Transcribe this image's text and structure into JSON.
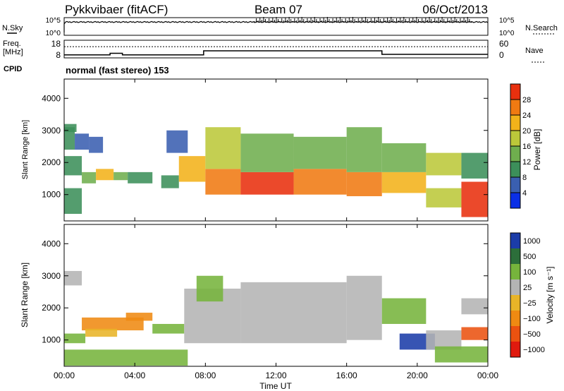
{
  "header": {
    "station": "Pykkvibaer (fitACF)",
    "beam": "Beam 07",
    "date": "06/Oct/2013"
  },
  "top_strip": {
    "nsky_label": "N.Sky",
    "nsky_ticks": [
      "10^5",
      "10^0"
    ],
    "nsearch_label": "N.Search",
    "nsearch_ticks": [
      "10^5",
      "10^0"
    ],
    "freq_label_1": "Freq.",
    "freq_label_2": "[MHz]",
    "freq_ticks": [
      "18",
      "8"
    ],
    "nave_label": "Nave",
    "nave_ticks": [
      "60",
      "0"
    ],
    "cpid_label": "CPID",
    "cpid_value": "normal (fast stereo) 153",
    "freq_steps": [
      {
        "start_hour": 0,
        "end_hour": 2.6,
        "freq_mhz": 9.7
      },
      {
        "start_hour": 2.6,
        "end_hour": 3.3,
        "freq_mhz": 10.6
      },
      {
        "start_hour": 3.3,
        "end_hour": 7.9,
        "freq_mhz": 9.7
      },
      {
        "start_hour": 7.9,
        "end_hour": 18.0,
        "freq_mhz": 12.0
      },
      {
        "start_hour": 18.0,
        "end_hour": 24,
        "freq_mhz": 10.0
      }
    ],
    "nave_level": 38
  },
  "panels": {
    "power": {
      "ylabel": "Slant Range [km]",
      "cb_label": "Power [dB]",
      "cb_ticks": [
        "28",
        "24",
        "20",
        "16",
        "12",
        "8",
        "4"
      ]
    },
    "velocity": {
      "ylabel": "Slant Range [km]",
      "cb_label": "Velocity [m s⁻¹]",
      "cb_ticks": [
        "1000",
        "500",
        "100",
        "25",
        "−25",
        "−100",
        "−500",
        "−1000"
      ]
    }
  },
  "x_axis": {
    "label": "Time UT",
    "ticks": [
      "00:00",
      "04:00",
      "08:00",
      "12:00",
      "16:00",
      "20:00",
      "00:00"
    ]
  },
  "y_ticks": [
    "4000",
    "3000",
    "2000",
    "1000"
  ],
  "colors": {
    "power_scale": [
      "#0a2fe6",
      "#3a5fb0",
      "#3c8f5a",
      "#6fae4e",
      "#bcc83a",
      "#f2b21a",
      "#f07a12",
      "#e8300e"
    ],
    "velocity_scale": [
      "#1b3ca8",
      "#2c6e3a",
      "#76b43c",
      "#b4b4b4",
      "#e8b428",
      "#ef8a12",
      "#eb5210",
      "#e01a0e"
    ]
  },
  "chart_data": {
    "type": "heatmap",
    "title": "Pykkvibaer (fitACF)   Beam 07   06/Oct/2013",
    "xlabel": "Time UT",
    "ylabel": "Slant Range [km]",
    "xlim_hours": [
      0,
      24
    ],
    "ylim_km": [
      180,
      4600
    ],
    "panels": [
      {
        "name": "Power [dB]",
        "colorbar_range": [
          0,
          30
        ],
        "regions": [
          {
            "start_hour": 0.0,
            "end_hour": 0.6,
            "range_km": [
              2400,
              3100
            ],
            "value": 8
          },
          {
            "start_hour": 0.6,
            "end_hour": 1.4,
            "range_km": [
              2400,
              2900
            ],
            "value": 6
          },
          {
            "start_hour": 1.4,
            "end_hour": 2.2,
            "range_km": [
              2300,
              2800
            ],
            "value": 6
          },
          {
            "start_hour": 0.0,
            "end_hour": 1.0,
            "range_km": [
              1600,
              2200
            ],
            "value": 10
          },
          {
            "start_hour": 0.0,
            "end_hour": 1.0,
            "range_km": [
              400,
              1200
            ],
            "value": 9
          },
          {
            "start_hour": 0.0,
            "end_hour": 0.7,
            "range_km": [
              2950,
              3200
            ],
            "value": 11
          },
          {
            "start_hour": 1.0,
            "end_hour": 1.8,
            "range_km": [
              1350,
              1700
            ],
            "value": 14
          },
          {
            "start_hour": 1.8,
            "end_hour": 2.8,
            "range_km": [
              1450,
              1800
            ],
            "value": 19
          },
          {
            "start_hour": 2.8,
            "end_hour": 3.6,
            "range_km": [
              1450,
              1700
            ],
            "value": 14
          },
          {
            "start_hour": 3.6,
            "end_hour": 5.0,
            "range_km": [
              1350,
              1700
            ],
            "value": 9
          },
          {
            "start_hour": 5.5,
            "end_hour": 6.5,
            "range_km": [
              1200,
              1600
            ],
            "value": 8
          },
          {
            "start_hour": 5.8,
            "end_hour": 7.0,
            "range_km": [
              2300,
              3000
            ],
            "value": 5
          },
          {
            "start_hour": 6.5,
            "end_hour": 8.0,
            "range_km": [
              1400,
              2200
            ],
            "value": 22
          },
          {
            "start_hour": 8.0,
            "end_hour": 10.0,
            "range_km": [
              1000,
              1800
            ],
            "value": 25
          },
          {
            "start_hour": 8.0,
            "end_hour": 10.0,
            "range_km": [
              1800,
              3100
            ],
            "value": 17
          },
          {
            "start_hour": 10.0,
            "end_hour": 13.0,
            "range_km": [
              1000,
              1700
            ],
            "value": 27
          },
          {
            "start_hour": 10.0,
            "end_hour": 13.0,
            "range_km": [
              1700,
              2900
            ],
            "value": 14
          },
          {
            "start_hour": 13.0,
            "end_hour": 16.0,
            "range_km": [
              1000,
              1800
            ],
            "value": 26
          },
          {
            "start_hour": 13.0,
            "end_hour": 16.0,
            "range_km": [
              1800,
              2800
            ],
            "value": 13
          },
          {
            "start_hour": 16.0,
            "end_hour": 18.0,
            "range_km": [
              950,
              1700
            ],
            "value": 25
          },
          {
            "start_hour": 16.0,
            "end_hour": 18.0,
            "range_km": [
              1700,
              3100
            ],
            "value": 13
          },
          {
            "start_hour": 18.0,
            "end_hour": 20.5,
            "range_km": [
              1050,
              1700
            ],
            "value": 22
          },
          {
            "start_hour": 18.0,
            "end_hour": 20.5,
            "range_km": [
              1700,
              2600
            ],
            "value": 12
          },
          {
            "start_hour": 20.5,
            "end_hour": 22.5,
            "range_km": [
              1600,
              2300
            ],
            "value": 16
          },
          {
            "start_hour": 20.5,
            "end_hour": 22.5,
            "range_km": [
              600,
              1200
            ],
            "value": 17
          },
          {
            "start_hour": 22.5,
            "end_hour": 24.0,
            "range_km": [
              1500,
              2300
            ],
            "value": 10
          },
          {
            "start_hour": 22.5,
            "end_hour": 24.0,
            "range_km": [
              300,
              1400
            ],
            "value": 28
          }
        ]
      },
      {
        "name": "Velocity [m s⁻¹]",
        "colorbar_range": [
          -1000,
          1000
        ],
        "regions": [
          {
            "start_hour": 0.0,
            "end_hour": 1.2,
            "range_km": [
              900,
              1200
            ],
            "value": 60
          },
          {
            "start_hour": 1.0,
            "end_hour": 4.5,
            "range_km": [
              1300,
              1700
            ],
            "value": -150
          },
          {
            "start_hour": 1.2,
            "end_hour": 3.0,
            "range_km": [
              1100,
              1350
            ],
            "value": -60
          },
          {
            "start_hour": 3.5,
            "end_hour": 5.0,
            "range_km": [
              1600,
              1850
            ],
            "value": -300
          },
          {
            "start_hour": 5.0,
            "end_hour": 6.8,
            "range_km": [
              1200,
              1500
            ],
            "value": 80
          },
          {
            "start_hour": 0.0,
            "end_hour": 7.0,
            "range_km": [
              200,
              700
            ],
            "value": 70
          },
          {
            "start_hour": 0.0,
            "end_hour": 1.0,
            "range_km": [
              2700,
              3150
            ],
            "value": 0
          },
          {
            "start_hour": 6.8,
            "end_hour": 10.0,
            "range_km": [
              900,
              2600
            ],
            "value": 0
          },
          {
            "start_hour": 7.5,
            "end_hour": 9.0,
            "range_km": [
              2200,
              3000
            ],
            "value": 40
          },
          {
            "start_hour": 10.0,
            "end_hour": 16.0,
            "range_km": [
              900,
              2800
            ],
            "value": 0
          },
          {
            "start_hour": 16.0,
            "end_hour": 18.0,
            "range_km": [
              1000,
              3000
            ],
            "value": 0
          },
          {
            "start_hour": 18.0,
            "end_hour": 20.5,
            "range_km": [
              1500,
              2300
            ],
            "value": 80
          },
          {
            "start_hour": 19.0,
            "end_hour": 21.0,
            "range_km": [
              700,
              1200
            ],
            "value": 800
          },
          {
            "start_hour": 20.5,
            "end_hour": 22.5,
            "range_km": [
              700,
              1300
            ],
            "value": 0
          },
          {
            "start_hour": 21.0,
            "end_hour": 24.0,
            "range_km": [
              300,
              800
            ],
            "value": 60
          },
          {
            "start_hour": 22.5,
            "end_hour": 24.0,
            "range_km": [
              1000,
              1400
            ],
            "value": -600
          },
          {
            "start_hour": 22.5,
            "end_hour": 24.0,
            "range_km": [
              1800,
              2300
            ],
            "value": 0
          }
        ]
      }
    ]
  }
}
